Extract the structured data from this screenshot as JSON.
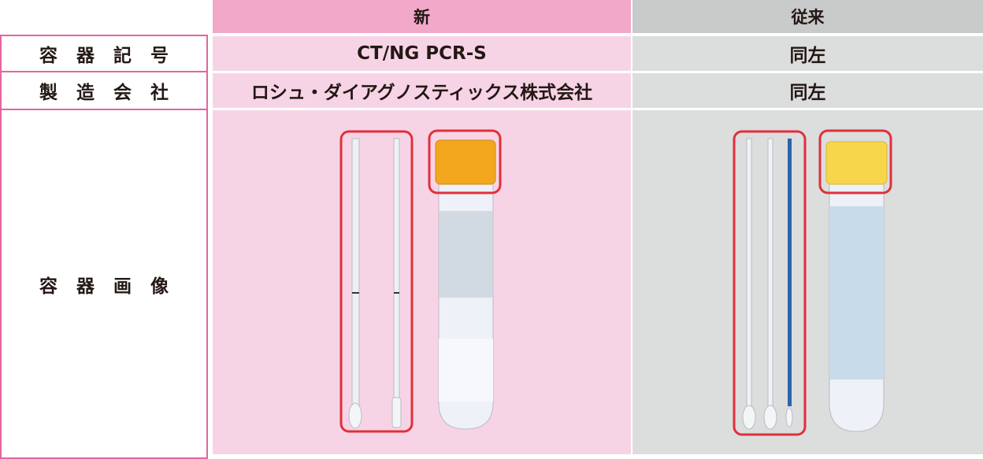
{
  "table": {
    "columns": [
      "新",
      "従来"
    ],
    "rows": [
      [
        "容器記号",
        "CT/NG PCR-S",
        "同左"
      ],
      [
        "製造会社",
        "ロシュ・ダイアグノスティックス株式会社",
        "同左"
      ],
      [
        "容器画像"
      ]
    ]
  }
}
